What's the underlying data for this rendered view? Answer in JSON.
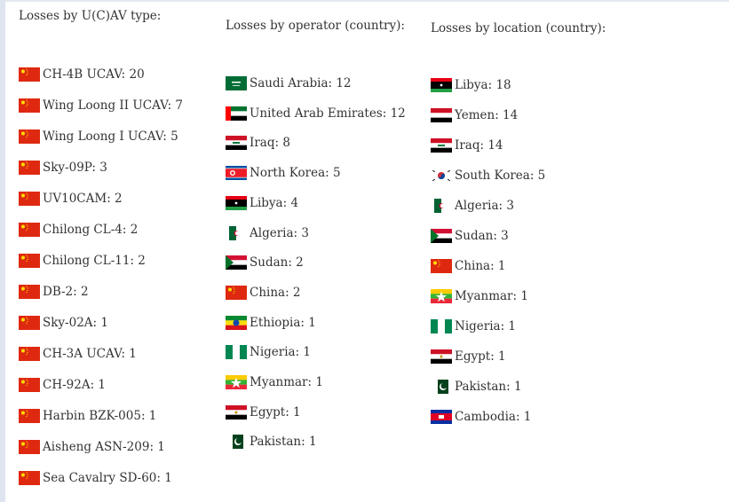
{
  "columns": [
    {
      "title": "Losses by U(C)AV type:",
      "items": [
        {
          "flag": "cn",
          "text": "CH-4B UCAV: 20"
        },
        {
          "flag": "cn",
          "text": "Wing Loong II UCAV: 7"
        },
        {
          "flag": "cn",
          "text": "Wing Loong I UCAV: 5"
        },
        {
          "flag": "cn",
          "text": "Sky-09P: 3"
        },
        {
          "flag": "cn",
          "text": "UV10CAM: 2"
        },
        {
          "flag": "cn",
          "text": "Chilong CL-4: 2"
        },
        {
          "flag": "cn",
          "text": "Chilong CL-11: 2"
        },
        {
          "flag": "cn",
          "text": "DB-2: 2"
        },
        {
          "flag": "cn",
          "text": "Sky-02A: 1"
        },
        {
          "flag": "cn",
          "text": "CH-3A UCAV: 1"
        },
        {
          "flag": "cn",
          "text": "CH-92A: 1"
        },
        {
          "flag": "cn",
          "text": "Harbin BZK-005: 1"
        },
        {
          "flag": "cn",
          "text": "Aisheng ASN-209: 1"
        },
        {
          "flag": "cn",
          "text": "Sea Cavalry SD-60: 1"
        }
      ]
    },
    {
      "title": "Losses by operator (country):",
      "items": [
        {
          "flag": "sa",
          "text": "Saudi Arabia: 12"
        },
        {
          "flag": "ae",
          "text": "United Arab Emirates: 12"
        },
        {
          "flag": "iq",
          "text": "Iraq: 8"
        },
        {
          "flag": "kp",
          "text": "North Korea: 5"
        },
        {
          "flag": "ly",
          "text": "Libya: 4"
        },
        {
          "flag": "dz",
          "text": "Algeria: 3"
        },
        {
          "flag": "sd",
          "text": "Sudan: 2"
        },
        {
          "flag": "cn",
          "text": "China: 2"
        },
        {
          "flag": "et",
          "text": "Ethiopia: 1"
        },
        {
          "flag": "ng",
          "text": "Nigeria: 1"
        },
        {
          "flag": "mm",
          "text": "Myanmar: 1"
        },
        {
          "flag": "eg",
          "text": "Egypt: 1"
        },
        {
          "flag": "pk",
          "text": "Pakistan: 1"
        }
      ]
    },
    {
      "title": "Losses by location (country):",
      "items": [
        {
          "flag": "ly",
          "text": "Libya: 18"
        },
        {
          "flag": "ye",
          "text": "Yemen: 14"
        },
        {
          "flag": "iq",
          "text": "Iraq: 14"
        },
        {
          "flag": "kr",
          "text": "South Korea: 5"
        },
        {
          "flag": "dz",
          "text": "Algeria: 3"
        },
        {
          "flag": "sd",
          "text": "Sudan: 3"
        },
        {
          "flag": "cn",
          "text": "China: 1"
        },
        {
          "flag": "mm",
          "text": "Myanmar: 1"
        },
        {
          "flag": "ng",
          "text": "Nigeria: 1"
        },
        {
          "flag": "eg",
          "text": "Egypt: 1"
        },
        {
          "flag": "pk",
          "text": "Pakistan: 1"
        },
        {
          "flag": "kh",
          "text": "Cambodia: 1"
        }
      ]
    }
  ]
}
